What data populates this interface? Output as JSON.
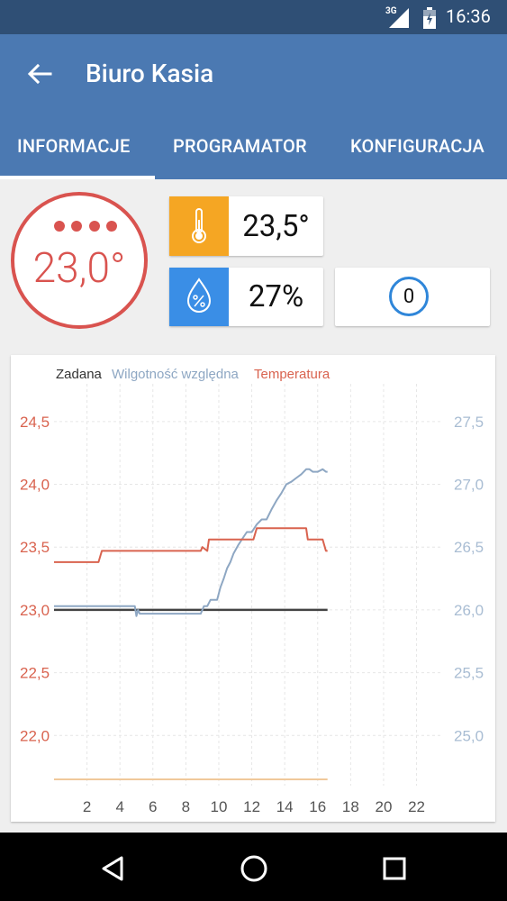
{
  "status_bar": {
    "network": "3G",
    "time": "16:36"
  },
  "app_bar": {
    "title": "Biuro Kasia",
    "back_icon": "arrow-back-icon"
  },
  "tabs": [
    {
      "label": "INFORMACJE",
      "active": true
    },
    {
      "label": "PROGRAMATOR",
      "active": false
    },
    {
      "label": "KONFIGURACJA",
      "active": false
    }
  ],
  "thermostat": {
    "set_temperature": "23,0°",
    "indicator_dots": 4
  },
  "cards": {
    "temperature": {
      "icon": "thermometer-icon",
      "value": "23,5°",
      "color": "#f5a623"
    },
    "humidity": {
      "icon": "humidity-drop-icon",
      "value": "27%",
      "color": "#3a8ee6"
    },
    "counter": {
      "value": "0"
    }
  },
  "colors": {
    "accent": "#4b79b2",
    "dark_bar": "#2f4f75",
    "temp": "#d9534f"
  },
  "chart_data": {
    "type": "line",
    "legend": [
      "Zadana",
      "Wilgotność względna",
      "Temperatura"
    ],
    "x_ticks": [
      2,
      4,
      6,
      8,
      10,
      12,
      14,
      16,
      18,
      20,
      22
    ],
    "xlim": [
      0,
      23.5
    ],
    "y_left_ticks": [
      "24,5",
      "24,0",
      "23,5",
      "23,0",
      "22,5",
      "22,0"
    ],
    "y_left_lim": [
      21.6,
      24.8
    ],
    "y_right_ticks": [
      "27,5",
      "27,0",
      "26,5",
      "26,0",
      "25,5",
      "25,0"
    ],
    "y_right_lim": [
      24.6,
      27.8
    ],
    "series": [
      {
        "name": "Zadana",
        "axis": "left",
        "color": "#444444",
        "x": [
          0,
          16.6
        ],
        "y": [
          23.0,
          23.0
        ]
      },
      {
        "name": "Wilgotność względna",
        "axis": "right",
        "color": "#8ea7c3",
        "x": [
          0,
          4.9,
          5.0,
          5.1,
          5.2,
          5.3,
          8.9,
          9.1,
          9.3,
          9.5,
          9.9,
          10.1,
          10.3,
          10.5,
          10.7,
          10.9,
          11.2,
          11.5,
          11.7,
          12.0,
          12.3,
          12.6,
          12.9,
          13.2,
          13.5,
          13.8,
          14.1,
          14.4,
          14.7,
          15.0,
          15.3,
          15.5,
          15.7,
          16.0,
          16.3,
          16.5,
          16.6
        ],
        "y": [
          26.03,
          26.03,
          25.95,
          26.0,
          25.97,
          25.97,
          25.97,
          26.03,
          26.03,
          26.08,
          26.08,
          26.18,
          26.25,
          26.33,
          26.38,
          26.45,
          26.52,
          26.58,
          26.62,
          26.62,
          26.68,
          26.72,
          26.72,
          26.8,
          26.87,
          26.93,
          27.0,
          27.02,
          27.05,
          27.08,
          27.12,
          27.12,
          27.1,
          27.1,
          27.12,
          27.1,
          27.1
        ]
      },
      {
        "name": "Temperatura",
        "axis": "left",
        "color": "#d9634f",
        "x": [
          0,
          2.7,
          2.9,
          8.9,
          9.0,
          9.3,
          9.4,
          12.1,
          12.3,
          15.3,
          15.4,
          16.3,
          16.5,
          16.6
        ],
        "y": [
          23.38,
          23.38,
          23.47,
          23.47,
          23.5,
          23.47,
          23.56,
          23.56,
          23.65,
          23.65,
          23.56,
          23.56,
          23.47,
          23.47
        ]
      },
      {
        "name": "",
        "axis": "left",
        "color": "#f0c89a",
        "x": [
          0,
          16.6
        ],
        "y": [
          21.65,
          21.65
        ]
      }
    ]
  }
}
